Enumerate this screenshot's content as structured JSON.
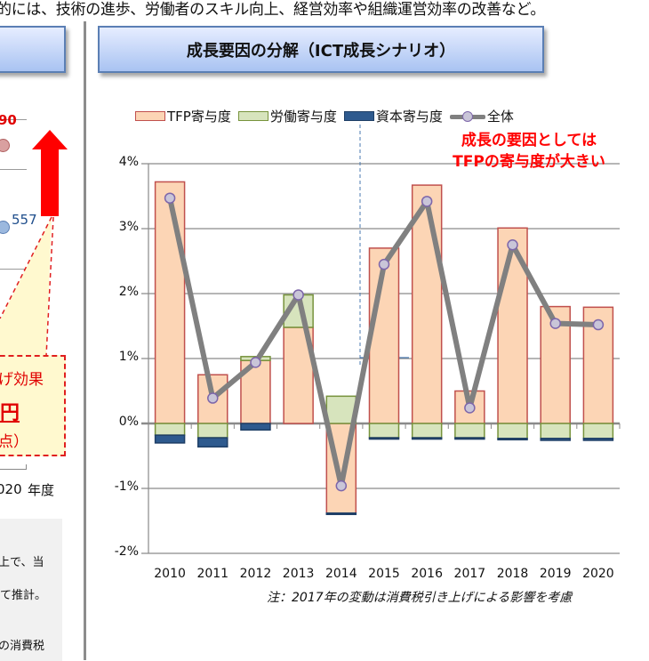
{
  "header": {
    "intro_text": "的には、技術の進歩、労働者のスキル向上、経営効率や組織運営効率の改善など。"
  },
  "left_panel": {
    "value_red": "90",
    "value_blue": "557",
    "callout": {
      "line1": "げ効果",
      "line2": "円",
      "line3": "点）"
    },
    "axis_year": "020",
    "axis_unit": "年度",
    "notes": [
      "上で、当",
      "て推計。",
      "の消費税"
    ]
  },
  "right_panel": {
    "title": "成長要因の分解（ICT成長シナリオ）",
    "annotation_line1": "成長の要因としては",
    "annotation_line2": "TFPの寄与度が大きい",
    "footnote": "注：2017年の変動は消費税引き上げによる影響を考慮"
  },
  "colors": {
    "tfp_fill": "#fcd5b5",
    "tfp_border": "#c0504d",
    "labor_fill": "#d7e4bd",
    "labor_border": "#77933c",
    "capital_fill": "#2e5a8e",
    "capital_border": "#1f3f66",
    "line": "#808080",
    "marker_fill": "#c9c5d8",
    "marker_border": "#7d66aa",
    "annotation": "#ff0000",
    "title_border": "#5b7fb4"
  },
  "chart_data": {
    "type": "bar",
    "subtype": "stacked bar + line",
    "title": "成長要因の分解（ICT成長シナリオ）",
    "xlabel": "",
    "ylabel": "",
    "ylim": [
      -2,
      4
    ],
    "y_ticks": [
      "4%",
      "3%",
      "2%",
      "1%",
      "0%",
      "-1%",
      "-2%"
    ],
    "y_tick_values": [
      4,
      3,
      2,
      1,
      0,
      -1,
      -2
    ],
    "grid": true,
    "legend_position": "top",
    "legend": [
      "TFP寄与度",
      "労働寄与度",
      "資本寄与度",
      "全体"
    ],
    "categories": [
      "2010",
      "2011",
      "2012",
      "2013",
      "2014",
      "2015",
      "2016",
      "2017",
      "2018",
      "2019",
      "2020"
    ],
    "series": [
      {
        "name": "TFP寄与度",
        "type": "bar",
        "values": [
          3.72,
          0.75,
          0.97,
          1.48,
          -1.38,
          2.7,
          3.67,
          0.5,
          3.01,
          1.8,
          1.79
        ]
      },
      {
        "name": "労働寄与度",
        "type": "bar",
        "values": [
          -0.18,
          -0.22,
          0.06,
          0.5,
          0.42,
          -0.22,
          -0.22,
          -0.22,
          -0.23,
          -0.23,
          -0.23
        ]
      },
      {
        "name": "資本寄与度",
        "type": "bar",
        "values": [
          -0.12,
          -0.14,
          -0.1,
          0.0,
          -0.02,
          -0.02,
          -0.02,
          -0.02,
          -0.02,
          -0.03,
          -0.03
        ]
      },
      {
        "name": "全体",
        "type": "line",
        "values": [
          3.47,
          0.39,
          0.94,
          1.98,
          -0.96,
          2.45,
          3.42,
          0.24,
          2.75,
          1.54,
          1.52
        ]
      }
    ],
    "annotations": [
      "成長の要因としては",
      "TFPの寄与度が大きい",
      "注：2017年の変動は消費税引き上げによる影響を考慮"
    ]
  }
}
